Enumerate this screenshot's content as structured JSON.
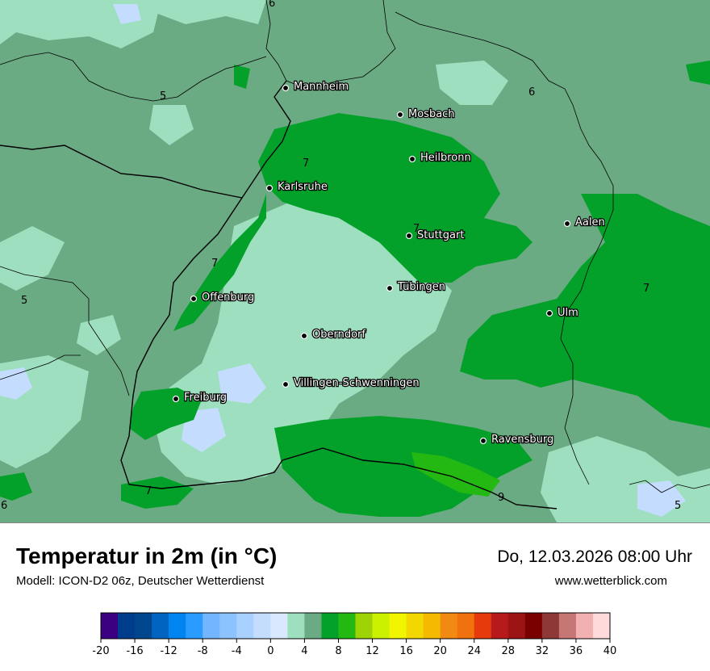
{
  "title": "Temperatur in 2m (in °C)",
  "subtitle": "Modell: ICON-D2 06z, Deutscher Wetterdienst",
  "datetime": "Do, 12.03.2026 08:00 Uhr",
  "website": "www.wetterblick.com",
  "cities": [
    {
      "name": "Mannheim"
    },
    {
      "name": "Mosbach"
    },
    {
      "name": "Heilbronn"
    },
    {
      "name": "Karlsruhe"
    },
    {
      "name": "Aalen"
    },
    {
      "name": "Stuttgart"
    },
    {
      "name": "Tübingen"
    },
    {
      "name": "Offenburg"
    },
    {
      "name": "Ulm"
    },
    {
      "name": "Oberndorf"
    },
    {
      "name": "Villingen-Schwenningen"
    },
    {
      "name": "Freiburg"
    },
    {
      "name": "Ravensburg"
    }
  ],
  "contour_labels": [
    "6",
    "5",
    "6",
    "7",
    "7",
    "7",
    "5",
    "7",
    "7",
    "9",
    "6",
    "5"
  ],
  "legend": {
    "colors": [
      "#3b0082",
      "#003c8c",
      "#00478f",
      "#0064c0",
      "#0084f0",
      "#2a9cff",
      "#73b6ff",
      "#8cc3ff",
      "#a9d1ff",
      "#c4ddff",
      "#d9e8ff",
      "#9ddfbe",
      "#6aab84",
      "#04a12a",
      "#24b912",
      "#9ed306",
      "#ccf100",
      "#f2f500",
      "#f2d800",
      "#f4b900",
      "#f18912",
      "#f0710d",
      "#e6390c",
      "#b61a1a",
      "#9c1414",
      "#7a0000",
      "#8e3838",
      "#c77676",
      "#f2b0b0",
      "#ffdada"
    ],
    "tick_labels": [
      "-20",
      "-16",
      "-12",
      "-8",
      "-4",
      "0",
      "4",
      "8",
      "12",
      "16",
      "20",
      "24",
      "28",
      "32",
      "36",
      "40"
    ]
  }
}
